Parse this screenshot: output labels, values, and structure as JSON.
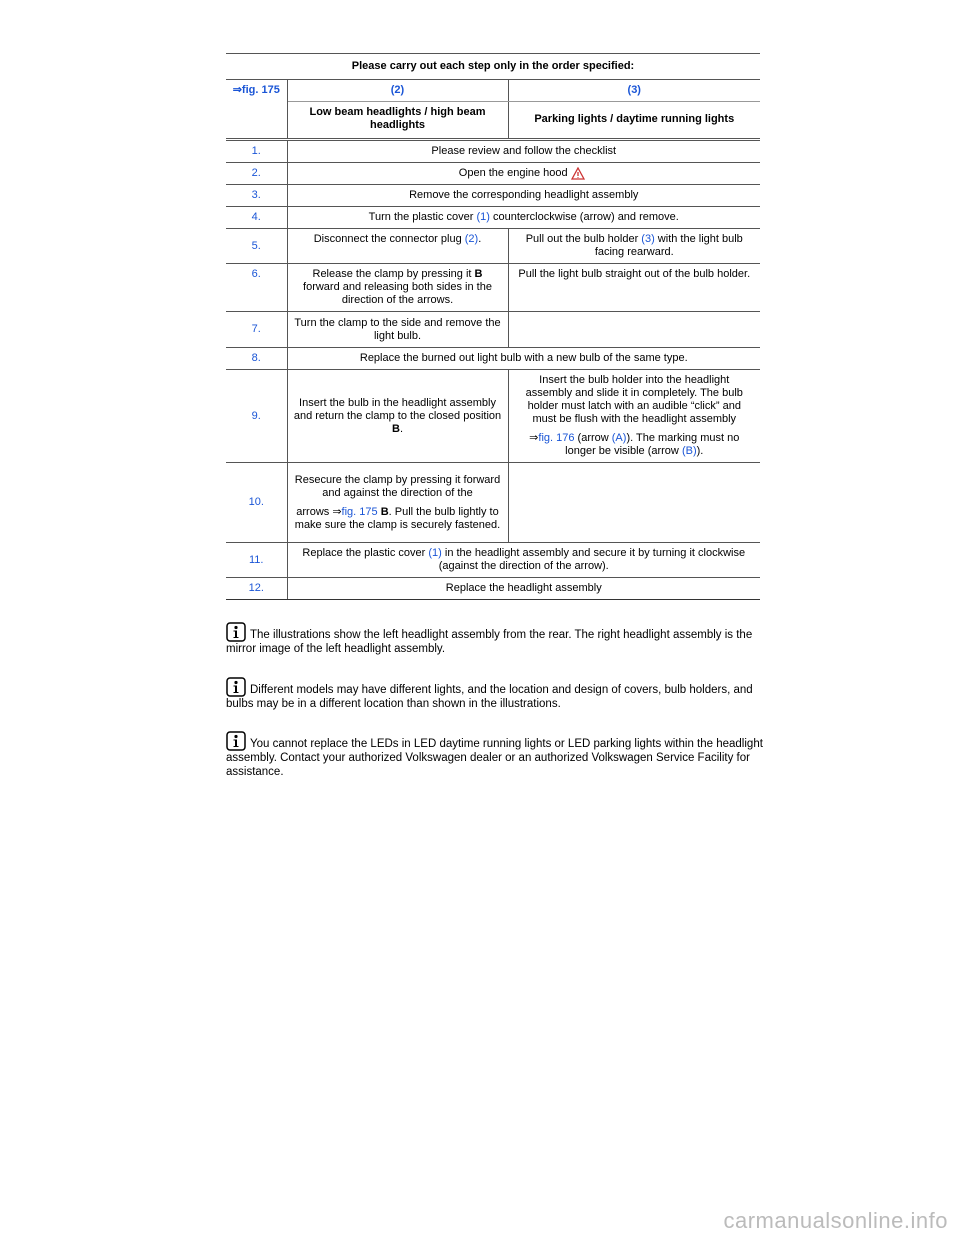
{
  "table": {
    "title": "Please carry out each step only in the order specified:",
    "header": {
      "ref": "⇒fig. 175",
      "col2": "(2)",
      "col3": "(3)",
      "col2_label": "Low beam headlights / high beam headlights",
      "col3_label": "Parking lights / daytime running lights"
    },
    "rows": [
      {
        "step": "1.",
        "cells": [
          [
            [
              "Please review and follow the checklist"
            ]
          ]
        ]
      },
      {
        "step": "2.",
        "cells": [
          [
            [
              "Open the engine hood"
            ]
          ]
        ]
      },
      {
        "step": "3.",
        "cells": [
          [
            [
              "Remove the corresponding headlight assembly"
            ]
          ]
        ]
      },
      {
        "step": "4.",
        "cells": [
          [
            [
              "Turn the plastic cover ",
              "(1)",
              " counterclockwise (arrow) and remove."
            ]
          ]
        ]
      },
      {
        "step": "5.",
        "cells": [
          [
            [
              "Disconnect the connector plug ",
              "(2)",
              "."
            ]
          ],
          [
            [
              "Pull out the bulb holder ",
              "(3)",
              " with the light bulb facing rearward."
            ]
          ]
        ]
      },
      {
        "step": "6.",
        "cells": [
          [
            [
              "Release the clamp by pressing it ",
              "B",
              " forward and releasing both sides in the direction of the arrows."
            ]
          ],
          [
            [
              "Pull the light bulb straight out of the bulb holder."
            ]
          ]
        ]
      },
      {
        "step": "7.",
        "cells": [
          [
            [
              "Turn the clamp to the side and remove the light bulb."
            ]
          ]
        ]
      },
      {
        "step": "8.",
        "cells": [
          [
            [
              "Replace the burned out light bulb with a new bulb of the same type."
            ]
          ]
        ]
      },
      {
        "step": "9.",
        "cells": [
          [
            [
              "Insert the bulb in the headlight assembly and return the clamp to the closed position ",
              "B",
              "."
            ]
          ],
          [
            [
              "Insert the bulb holder into the headlight assembly and slide it in completely. The bulb holder must latch with an audible “click” and must be flush with the headlight assembly"
            ],
            [
              "⇒",
              "fig. 176",
              " (arrow ",
              "(A)",
              "). The marking must no longer be visible (arrow ",
              "(B)",
              ")."
            ]
          ]
        ]
      },
      {
        "step": "10.",
        "cells": [
          [
            [
              "Resecure the clamp by pressing it forward and against the direction of the"
            ],
            [
              "arrows ⇒",
              "fig. 175",
              " B",
              ". Pull the bulb lightly to make sure the clamp is securely fastened."
            ]
          ]
        ]
      },
      {
        "step": "11.",
        "cells": [
          [
            [
              "Replace the plastic cover ",
              "(1)",
              " in the headlight assembly and secure it by turning it clockwise (against the direction of the arrow)."
            ]
          ]
        ]
      },
      {
        "step": "12.",
        "cells": [
          [
            [
              "Replace the headlight assembly"
            ]
          ]
        ]
      }
    ]
  },
  "notes": [
    "The illustrations show the left headlight assembly from the rear. The right headlight assembly is the mirror image of the left headlight assembly.",
    "Different models may have different lights, and the location and design of covers, bulb holders, and bulbs may be in a different location than shown in the illustrations.",
    "You cannot replace the LEDs in LED daytime running lights or LED parking lights within the headlight assembly. Contact your authorized Volkswagen dealer or an authorized Volkswagen Service Facility for assistance."
  ],
  "watermark": "carmanualsonline.info"
}
